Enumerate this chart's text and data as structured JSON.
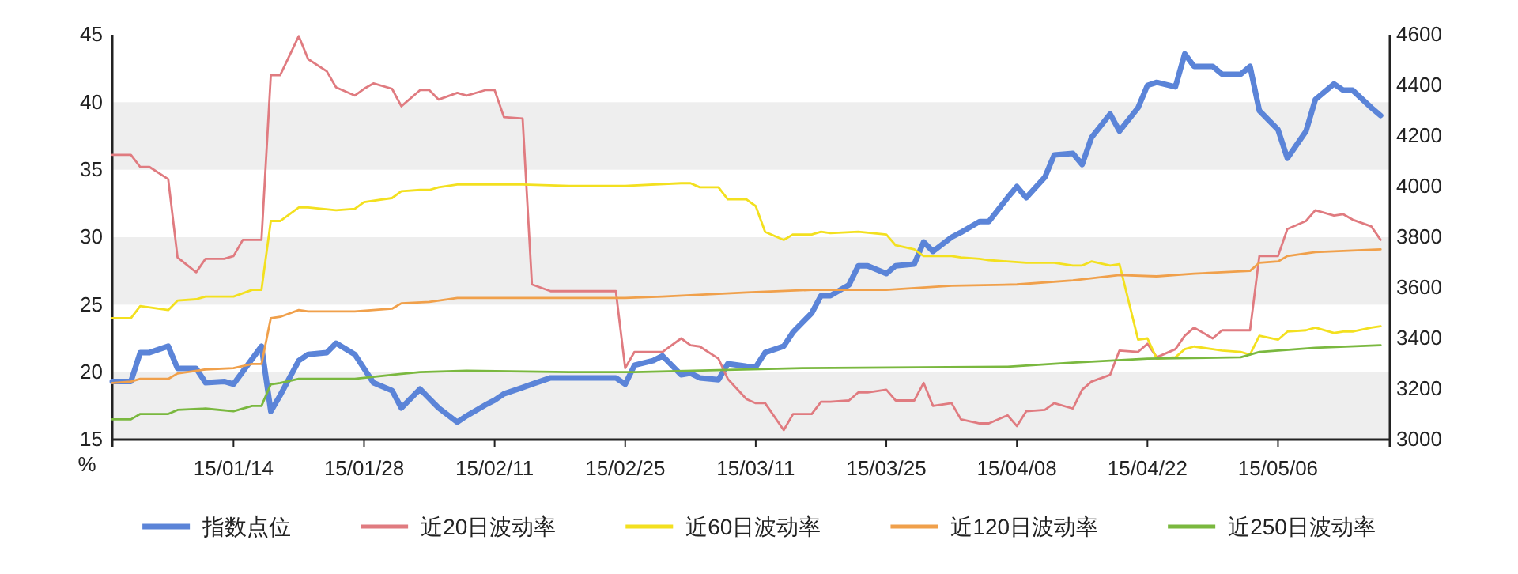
{
  "chart_data": {
    "type": "line",
    "ylabel": "%",
    "xlim": [
      "--01-01",
      "--05-18"
    ],
    "xticks": [
      {
        "value": "--01-14",
        "label": "15/01/14"
      },
      {
        "value": "--01-28",
        "label": "15/01/28"
      },
      {
        "value": "--02-11",
        "label": "15/02/11"
      },
      {
        "value": "--02-25",
        "label": "15/02/25"
      },
      {
        "value": "--03-11",
        "label": "15/03/11"
      },
      {
        "value": "--03-25",
        "label": "15/03/25"
      },
      {
        "value": "--04-08",
        "label": "15/04/08"
      },
      {
        "value": "--04-22",
        "label": "15/04/22"
      },
      {
        "value": "--05-06",
        "label": "15/05/06"
      }
    ],
    "ylim": [
      15,
      45
    ],
    "yticks": [
      15,
      20,
      25,
      30,
      35,
      40,
      45
    ],
    "y2lim": [
      3000,
      4600
    ],
    "y2ticks": [
      3000,
      3200,
      3400,
      3600,
      3800,
      4000,
      4200,
      4400,
      4600
    ],
    "legend": "bottom",
    "marker": "none",
    "line_style": "solid",
    "series": [
      {
        "name": "指数点位",
        "color": "#5b84d8",
        "axis": "y2",
        "x": [
          "--01-01",
          "--01-03",
          "--01-04",
          "--01-05",
          "--01-07",
          "--01-08",
          "--01-10",
          "--01-11",
          "--01-13",
          "--01-14",
          "--01-16",
          "--01-17",
          "--01-18",
          "--01-19",
          "--01-21",
          "--01-22",
          "--01-24",
          "--01-25",
          "--01-27",
          "--01-28",
          "--01-29",
          "--01-31",
          "--02-01",
          "--02-03",
          "--02-04",
          "--02-05",
          "--02-07",
          "--02-08",
          "--02-10",
          "--02-11",
          "--02-12",
          "--02-14",
          "--02-15",
          "--02-17",
          "--02-24",
          "--02-25",
          "--02-26",
          "--02-28",
          "--03-01",
          "--03-03",
          "--03-04",
          "--03-05",
          "--03-07",
          "--03-08",
          "--03-10",
          "--03-11",
          "--03-12",
          "--03-14",
          "--03-15",
          "--03-17",
          "--03-18",
          "--03-19",
          "--03-21",
          "--03-22",
          "--03-23",
          "--03-25",
          "--03-26",
          "--03-28",
          "--03-29",
          "--03-30",
          "--04-01",
          "--04-02",
          "--04-04",
          "--04-05",
          "--04-07",
          "--04-08",
          "--04-09",
          "--04-11",
          "--04-12",
          "--04-14",
          "--04-15",
          "--04-16",
          "--04-18",
          "--04-19",
          "--04-21",
          "--04-22",
          "--04-23",
          "--04-25",
          "--04-26",
          "--04-27",
          "--04-29",
          "--04-30",
          "--05-02",
          "--05-03",
          "--05-04",
          "--05-06",
          "--05-07",
          "--05-09",
          "--05-10",
          "--05-12",
          "--05-13",
          "--05-14",
          "--05-16",
          "--05-17"
        ],
        "values": [
          3230,
          3230,
          3344,
          3344,
          3369,
          3281,
          3281,
          3225,
          3230,
          3219,
          3319,
          3369,
          3112,
          3175,
          3312,
          3337,
          3344,
          3381,
          3337,
          3281,
          3225,
          3194,
          3125,
          3200,
          3162,
          3125,
          3069,
          3094,
          3137,
          3156,
          3181,
          3206,
          3219,
          3244,
          3244,
          3219,
          3294,
          3312,
          3331,
          3256,
          3262,
          3244,
          3237,
          3300,
          3290,
          3287,
          3344,
          3369,
          3425,
          3500,
          3569,
          3569,
          3612,
          3687,
          3687,
          3656,
          3687,
          3694,
          3781,
          3744,
          3800,
          3819,
          3862,
          3862,
          3956,
          4000,
          3956,
          4037,
          4125,
          4131,
          4087,
          4194,
          4287,
          4219,
          4312,
          4400,
          4412,
          4394,
          4525,
          4475,
          4475,
          4444,
          4444,
          4475,
          4300,
          4225,
          4112,
          4219,
          4344,
          4406,
          4381,
          4381,
          4312,
          4281
        ]
      },
      {
        "name": "近20日波动率",
        "color": "#e07b80",
        "x": [
          "--01-01",
          "--01-03",
          "--01-04",
          "--01-05",
          "--01-07",
          "--01-08",
          "--01-10",
          "--01-11",
          "--01-13",
          "--01-14",
          "--01-15",
          "--01-17",
          "--01-18",
          "--01-19",
          "--01-21",
          "--01-22",
          "--01-24",
          "--01-25",
          "--01-27",
          "--01-28",
          "--01-29",
          "--01-31",
          "--02-01",
          "--02-03",
          "--02-04",
          "--02-05",
          "--02-07",
          "--02-08",
          "--02-10",
          "--02-11",
          "--02-12",
          "--02-14",
          "--02-15",
          "--02-17",
          "--02-24",
          "--02-25",
          "--02-26",
          "--03-01",
          "--03-03",
          "--03-04",
          "--03-05",
          "--03-07",
          "--03-08",
          "--03-10",
          "--03-11",
          "--03-12",
          "--03-14",
          "--03-15",
          "--03-17",
          "--03-18",
          "--03-19",
          "--03-21",
          "--03-22",
          "--03-23",
          "--03-25",
          "--03-26",
          "--03-28",
          "--03-29",
          "--03-30",
          "--04-01",
          "--04-02",
          "--04-04",
          "--04-05",
          "--04-07",
          "--04-08",
          "--04-09",
          "--04-11",
          "--04-12",
          "--04-14",
          "--04-15",
          "--04-16",
          "--04-18",
          "--04-19",
          "--04-21",
          "--04-22",
          "--04-23",
          "--04-25",
          "--04-26",
          "--04-27",
          "--04-29",
          "--04-30",
          "--05-02",
          "--05-03",
          "--05-04",
          "--05-06",
          "--05-07",
          "--05-09",
          "--05-10",
          "--05-12",
          "--05-13",
          "--05-14",
          "--05-16",
          "--05-17"
        ],
        "values": [
          36.1,
          36.1,
          35.2,
          35.2,
          34.3,
          28.5,
          27.4,
          28.4,
          28.4,
          28.6,
          29.8,
          29.8,
          42.0,
          42.0,
          44.9,
          43.2,
          42.3,
          41.1,
          40.5,
          41.0,
          41.4,
          41.0,
          39.7,
          40.9,
          40.9,
          40.2,
          40.7,
          40.5,
          40.9,
          40.9,
          38.9,
          38.8,
          26.5,
          26.0,
          26.0,
          20.3,
          21.5,
          21.5,
          22.5,
          22.0,
          21.9,
          21.0,
          19.5,
          18.0,
          17.7,
          17.7,
          15.7,
          16.9,
          16.9,
          17.8,
          17.8,
          17.9,
          18.5,
          18.5,
          18.7,
          17.9,
          17.9,
          19.2,
          17.5,
          17.7,
          16.5,
          16.2,
          16.2,
          16.8,
          16.0,
          17.1,
          17.2,
          17.7,
          17.3,
          18.7,
          19.3,
          19.8,
          21.6,
          21.5,
          22.1,
          21.1,
          21.7,
          22.7,
          23.3,
          22.5,
          23.1,
          23.1,
          23.1,
          28.6,
          28.6,
          30.6,
          31.2,
          32.0,
          31.6,
          31.7,
          31.3,
          30.8,
          29.8
        ]
      },
      {
        "name": "近60日波动率",
        "color": "#f3e01f",
        "x": [
          "--01-01",
          "--01-03",
          "--01-04",
          "--01-07",
          "--01-08",
          "--01-10",
          "--01-11",
          "--01-14",
          "--01-16",
          "--01-17",
          "--01-18",
          "--01-19",
          "--01-21",
          "--01-22",
          "--01-25",
          "--01-27",
          "--01-28",
          "--01-29",
          "--01-31",
          "--02-01",
          "--02-03",
          "--02-04",
          "--02-05",
          "--02-07",
          "--02-14",
          "--02-19",
          "--02-25",
          "--03-03",
          "--03-04",
          "--03-05",
          "--03-07",
          "--03-08",
          "--03-10",
          "--03-11",
          "--03-12",
          "--03-14",
          "--03-15",
          "--03-17",
          "--03-18",
          "--03-19",
          "--03-22",
          "--03-25",
          "--03-26",
          "--03-28",
          "--03-29",
          "--04-01",
          "--04-02",
          "--04-04",
          "--04-05",
          "--04-09",
          "--04-12",
          "--04-14",
          "--04-15",
          "--04-16",
          "--04-18",
          "--04-19",
          "--04-21",
          "--04-22",
          "--04-23",
          "--04-25",
          "--04-26",
          "--04-27",
          "--04-29",
          "--04-30",
          "--05-02",
          "--05-03",
          "--05-04",
          "--05-06",
          "--05-07",
          "--05-09",
          "--05-10",
          "--05-12",
          "--05-13",
          "--05-14",
          "--05-16",
          "--05-17"
        ],
        "values": [
          24.0,
          24.0,
          24.9,
          24.6,
          25.3,
          25.4,
          25.6,
          25.6,
          26.1,
          26.1,
          31.2,
          31.2,
          32.2,
          32.2,
          32.0,
          32.1,
          32.6,
          32.7,
          32.9,
          33.4,
          33.5,
          33.5,
          33.7,
          33.9,
          33.9,
          33.8,
          33.8,
          34.0,
          34.0,
          33.7,
          33.7,
          32.8,
          32.8,
          32.3,
          30.4,
          29.8,
          30.2,
          30.2,
          30.4,
          30.3,
          30.4,
          30.2,
          29.4,
          29.1,
          28.6,
          28.6,
          28.5,
          28.4,
          28.3,
          28.1,
          28.1,
          27.9,
          27.9,
          28.2,
          27.9,
          28.0,
          22.4,
          22.5,
          21.0,
          21.1,
          21.7,
          21.9,
          21.7,
          21.6,
          21.5,
          21.3,
          22.7,
          22.4,
          23.0,
          23.1,
          23.3,
          22.9,
          23.0,
          23.0,
          23.3,
          23.4
        ]
      },
      {
        "name": "近120日波动率",
        "color": "#f0a04b",
        "x": [
          "--01-01",
          "--01-03",
          "--01-04",
          "--01-07",
          "--01-08",
          "--01-11",
          "--01-14",
          "--01-16",
          "--01-17",
          "--01-18",
          "--01-19",
          "--01-21",
          "--01-22",
          "--01-27",
          "--01-29",
          "--01-31",
          "--02-01",
          "--02-04",
          "--02-07",
          "--02-19",
          "--02-25",
          "--03-01",
          "--03-10",
          "--03-17",
          "--03-25",
          "--04-01",
          "--04-08",
          "--04-14",
          "--04-19",
          "--04-23",
          "--04-27",
          "--05-03",
          "--05-04",
          "--05-06",
          "--05-07",
          "--05-10",
          "--05-17"
        ],
        "values": [
          19.2,
          19.3,
          19.5,
          19.5,
          19.9,
          20.2,
          20.3,
          20.6,
          20.6,
          24.0,
          24.1,
          24.6,
          24.5,
          24.5,
          24.6,
          24.7,
          25.1,
          25.2,
          25.5,
          25.5,
          25.5,
          25.6,
          25.9,
          26.1,
          26.1,
          26.4,
          26.5,
          26.8,
          27.2,
          27.1,
          27.3,
          27.5,
          28.1,
          28.2,
          28.6,
          28.9,
          29.1
        ]
      },
      {
        "name": "近250日波动率",
        "color": "#7ab83f",
        "x": [
          "--01-01",
          "--01-03",
          "--01-04",
          "--01-07",
          "--01-08",
          "--01-11",
          "--01-14",
          "--01-16",
          "--01-17",
          "--01-18",
          "--01-19",
          "--01-21",
          "--01-27",
          "--01-31",
          "--02-03",
          "--02-08",
          "--02-19",
          "--02-26",
          "--03-16",
          "--04-07",
          "--04-14",
          "--04-22",
          "--05-02",
          "--05-04",
          "--05-10",
          "--05-17"
        ],
        "values": [
          16.5,
          16.5,
          16.9,
          16.9,
          17.2,
          17.3,
          17.1,
          17.5,
          17.5,
          19.1,
          19.2,
          19.5,
          19.5,
          19.8,
          20.0,
          20.1,
          20.0,
          20.0,
          20.3,
          20.4,
          20.7,
          21.0,
          21.1,
          21.5,
          21.8,
          22.0
        ]
      }
    ]
  }
}
